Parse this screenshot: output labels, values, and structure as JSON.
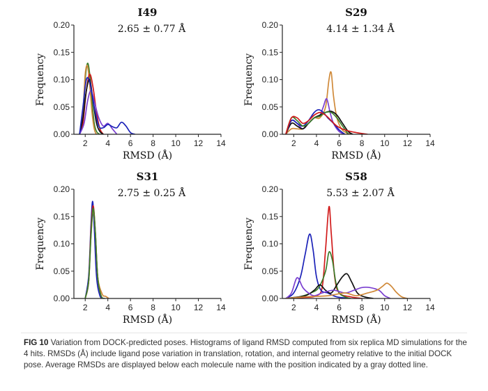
{
  "colors": {
    "green": "#3a7d2a",
    "red": "#d11a1a",
    "blue": "#1b22b8",
    "black": "#111111",
    "purple": "#7a3fd0",
    "orange": "#d08a3a"
  },
  "caption": {
    "label": "FIG 10",
    "text": "Variation from DOCK-predicted poses. Histograms of ligand RMSD computed from six replica MD simulations for the 4 hits. RMSDs (Å) include ligand pose variation in translation, rotation, and internal geometry relative to the initial DOCK pose. Average RMSDs are displayed below each molecule name with the position indicated by a gray dotted line."
  },
  "chart_data": [
    {
      "type": "line",
      "title": "I49",
      "subtitle": "2.65 ± 0.77 Å",
      "xlabel": "RMSD (Å)",
      "ylabel": "Frequency",
      "xlim": [
        1,
        14
      ],
      "ylim": [
        0,
        0.2
      ],
      "xticks": [
        2,
        4,
        6,
        8,
        10,
        12,
        14
      ],
      "yticks": [
        0.0,
        0.05,
        0.1,
        0.15,
        0.2
      ],
      "ytick_labels": [
        "0.00",
        "0.05",
        "0.10",
        "0.15",
        "0.20"
      ],
      "grid": false,
      "series": [
        {
          "color": "green",
          "x": [
            1.5,
            1.8,
            2.0,
            2.2,
            2.4,
            2.6,
            2.8,
            3.0,
            3.3,
            3.6
          ],
          "y": [
            0.0,
            0.03,
            0.1,
            0.13,
            0.11,
            0.06,
            0.02,
            0.005,
            0.0,
            0.0
          ]
        },
        {
          "color": "orange",
          "x": [
            1.5,
            1.8,
            2.0,
            2.2,
            2.4,
            2.6,
            2.8,
            3.0,
            3.3
          ],
          "y": [
            0.0,
            0.04,
            0.11,
            0.125,
            0.09,
            0.04,
            0.01,
            0.0,
            0.0
          ]
        },
        {
          "color": "red",
          "x": [
            1.5,
            1.8,
            2.1,
            2.4,
            2.7,
            3.0,
            3.3,
            3.6
          ],
          "y": [
            0.0,
            0.02,
            0.08,
            0.11,
            0.085,
            0.04,
            0.01,
            0.0
          ]
        },
        {
          "color": "black",
          "x": [
            1.5,
            1.8,
            2.1,
            2.4,
            2.7,
            3.0,
            3.3,
            3.6
          ],
          "y": [
            0.0,
            0.03,
            0.08,
            0.1,
            0.06,
            0.02,
            0.005,
            0.0
          ]
        },
        {
          "color": "purple",
          "x": [
            1.5,
            1.9,
            2.2,
            2.5,
            2.8,
            3.2,
            3.6,
            4.0,
            4.4,
            4.8
          ],
          "y": [
            0.0,
            0.02,
            0.06,
            0.08,
            0.06,
            0.03,
            0.015,
            0.02,
            0.01,
            0.0
          ]
        },
        {
          "color": "blue",
          "x": [
            1.5,
            1.8,
            2.1,
            2.4,
            2.8,
            3.2,
            3.6,
            4.0,
            4.4,
            4.8,
            5.2,
            5.6,
            6.0,
            6.4
          ],
          "y": [
            0.0,
            0.05,
            0.1,
            0.095,
            0.05,
            0.015,
            0.012,
            0.018,
            0.014,
            0.012,
            0.022,
            0.015,
            0.003,
            0.0
          ]
        }
      ]
    },
    {
      "type": "line",
      "title": "S29",
      "subtitle": "4.14 ± 1.34 Å",
      "xlabel": "RMSD (Å)",
      "ylabel": "Frequency",
      "xlim": [
        1,
        14
      ],
      "ylim": [
        0,
        0.2
      ],
      "xticks": [
        2,
        4,
        6,
        8,
        10,
        12,
        14
      ],
      "yticks": [
        0.0,
        0.05,
        0.1,
        0.15,
        0.2
      ],
      "ytick_labels": [
        "0.00",
        "0.05",
        "0.10",
        "0.15",
        "0.20"
      ],
      "grid": false,
      "series": [
        {
          "color": "orange",
          "x": [
            1.3,
            1.8,
            2.3,
            2.8,
            3.3,
            3.8,
            4.3,
            4.8,
            5.1,
            5.3,
            5.5,
            5.8,
            6.2,
            6.6,
            7.0
          ],
          "y": [
            0.0,
            0.01,
            0.01,
            0.01,
            0.02,
            0.03,
            0.03,
            0.05,
            0.1,
            0.113,
            0.07,
            0.03,
            0.01,
            0.003,
            0.0
          ]
        },
        {
          "color": "purple",
          "x": [
            1.3,
            1.8,
            2.3,
            2.8,
            3.3,
            3.8,
            4.3,
            4.6,
            4.9,
            5.2,
            5.5,
            6.0,
            6.5
          ],
          "y": [
            0.0,
            0.025,
            0.02,
            0.01,
            0.02,
            0.03,
            0.035,
            0.05,
            0.065,
            0.04,
            0.02,
            0.005,
            0.0
          ]
        },
        {
          "color": "black",
          "x": [
            1.3,
            1.8,
            2.3,
            2.8,
            3.3,
            3.8,
            4.3,
            4.8,
            5.3,
            5.8,
            6.3,
            6.8,
            7.2
          ],
          "y": [
            0.0,
            0.02,
            0.015,
            0.01,
            0.02,
            0.03,
            0.035,
            0.04,
            0.042,
            0.035,
            0.02,
            0.005,
            0.0
          ]
        },
        {
          "color": "blue",
          "x": [
            1.3,
            1.8,
            2.3,
            2.8,
            3.3,
            3.8,
            4.2,
            4.6,
            5.0,
            5.5,
            6.0,
            6.5
          ],
          "y": [
            0.0,
            0.025,
            0.02,
            0.015,
            0.025,
            0.04,
            0.045,
            0.04,
            0.03,
            0.02,
            0.008,
            0.0
          ]
        },
        {
          "color": "green",
          "x": [
            1.3,
            1.8,
            2.3,
            2.8,
            3.3,
            3.8,
            4.3,
            4.8,
            5.3,
            5.8,
            6.3,
            6.8
          ],
          "y": [
            0.0,
            0.03,
            0.025,
            0.015,
            0.02,
            0.03,
            0.033,
            0.04,
            0.04,
            0.03,
            0.015,
            0.0
          ]
        },
        {
          "color": "red",
          "x": [
            1.3,
            1.8,
            2.3,
            2.8,
            3.3,
            3.8,
            4.3,
            4.8,
            5.3,
            5.8,
            6.5,
            7.5,
            8.5
          ],
          "y": [
            0.0,
            0.03,
            0.03,
            0.02,
            0.025,
            0.035,
            0.04,
            0.035,
            0.025,
            0.015,
            0.008,
            0.003,
            0.0
          ]
        }
      ]
    },
    {
      "type": "line",
      "title": "S31",
      "subtitle": "2.75 ± 0.25 Å",
      "xlabel": "RMSD (Å)",
      "ylabel": "Frequency",
      "xlim": [
        1,
        14
      ],
      "ylim": [
        0,
        0.2
      ],
      "xticks": [
        2,
        4,
        6,
        8,
        10,
        12,
        14
      ],
      "yticks": [
        0.0,
        0.05,
        0.1,
        0.15,
        0.2
      ],
      "ytick_labels": [
        "0.00",
        "0.05",
        "0.10",
        "0.15",
        "0.20"
      ],
      "grid": false,
      "series": [
        {
          "color": "blue",
          "x": [
            2.0,
            2.3,
            2.5,
            2.65,
            2.8,
            3.0,
            3.3,
            3.6
          ],
          "y": [
            0.0,
            0.04,
            0.13,
            0.178,
            0.13,
            0.04,
            0.005,
            0.0
          ]
        },
        {
          "color": "red",
          "x": [
            2.0,
            2.3,
            2.5,
            2.7,
            2.9,
            3.1,
            3.4,
            3.7
          ],
          "y": [
            0.0,
            0.03,
            0.12,
            0.17,
            0.12,
            0.04,
            0.005,
            0.0
          ]
        },
        {
          "color": "orange",
          "x": [
            2.0,
            2.3,
            2.5,
            2.7,
            2.9,
            3.1,
            3.5,
            3.8,
            4.1
          ],
          "y": [
            0.0,
            0.03,
            0.11,
            0.16,
            0.12,
            0.04,
            0.008,
            0.004,
            0.0
          ]
        },
        {
          "color": "green",
          "x": [
            2.0,
            2.3,
            2.5,
            2.7,
            2.9,
            3.1,
            3.4,
            3.7
          ],
          "y": [
            0.0,
            0.03,
            0.11,
            0.165,
            0.12,
            0.04,
            0.005,
            0.0
          ]
        }
      ]
    },
    {
      "type": "line",
      "title": "S58",
      "subtitle": "5.53 ± 2.07 Å",
      "xlabel": "RMSD (Å)",
      "ylabel": "Frequency",
      "xlim": [
        1,
        14
      ],
      "ylim": [
        0,
        0.2
      ],
      "xticks": [
        2,
        4,
        6,
        8,
        10,
        12,
        14
      ],
      "yticks": [
        0.0,
        0.05,
        0.1,
        0.15,
        0.2
      ],
      "ytick_labels": [
        "0.00",
        "0.05",
        "0.10",
        "0.15",
        "0.20"
      ],
      "grid": false,
      "series": [
        {
          "color": "red",
          "x": [
            1.3,
            3.0,
            4.0,
            4.5,
            4.8,
            5.1,
            5.3,
            5.6,
            6.0,
            7.0,
            8.0
          ],
          "y": [
            0.0,
            0.002,
            0.005,
            0.02,
            0.09,
            0.168,
            0.12,
            0.04,
            0.01,
            0.003,
            0.0
          ]
        },
        {
          "color": "blue",
          "x": [
            1.3,
            2.0,
            2.6,
            3.0,
            3.4,
            3.7,
            4.0,
            4.4,
            5.0,
            5.5,
            6.0,
            7.0
          ],
          "y": [
            0.0,
            0.01,
            0.04,
            0.08,
            0.118,
            0.09,
            0.04,
            0.015,
            0.01,
            0.005,
            0.002,
            0.0
          ]
        },
        {
          "color": "green",
          "x": [
            1.3,
            2.5,
            3.5,
            4.2,
            4.8,
            5.1,
            5.4,
            5.7,
            6.0,
            6.5,
            7.0
          ],
          "y": [
            0.0,
            0.003,
            0.01,
            0.02,
            0.05,
            0.085,
            0.07,
            0.03,
            0.01,
            0.003,
            0.0
          ]
        },
        {
          "color": "black",
          "x": [
            1.3,
            3.0,
            3.8,
            4.3,
            4.8,
            5.3,
            5.8,
            6.3,
            6.7,
            7.1,
            7.6,
            8.2,
            9.0
          ],
          "y": [
            0.0,
            0.005,
            0.015,
            0.025,
            0.015,
            0.01,
            0.025,
            0.04,
            0.045,
            0.03,
            0.01,
            0.003,
            0.0
          ]
        },
        {
          "color": "purple",
          "x": [
            1.3,
            1.8,
            2.3,
            2.8,
            3.3,
            3.8,
            4.5,
            5.5,
            6.5,
            7.3,
            8.0,
            8.7,
            9.5,
            10.0,
            10.5
          ],
          "y": [
            0.0,
            0.01,
            0.038,
            0.02,
            0.01,
            0.005,
            0.01,
            0.015,
            0.01,
            0.015,
            0.02,
            0.02,
            0.015,
            0.005,
            0.0
          ]
        },
        {
          "color": "orange",
          "x": [
            1.3,
            3.0,
            5.0,
            6.5,
            7.5,
            8.5,
            9.3,
            9.8,
            10.2,
            10.6,
            11.0,
            11.5,
            12.0
          ],
          "y": [
            0.0,
            0.003,
            0.005,
            0.01,
            0.005,
            0.01,
            0.015,
            0.022,
            0.028,
            0.022,
            0.012,
            0.003,
            0.0
          ]
        }
      ]
    }
  ]
}
